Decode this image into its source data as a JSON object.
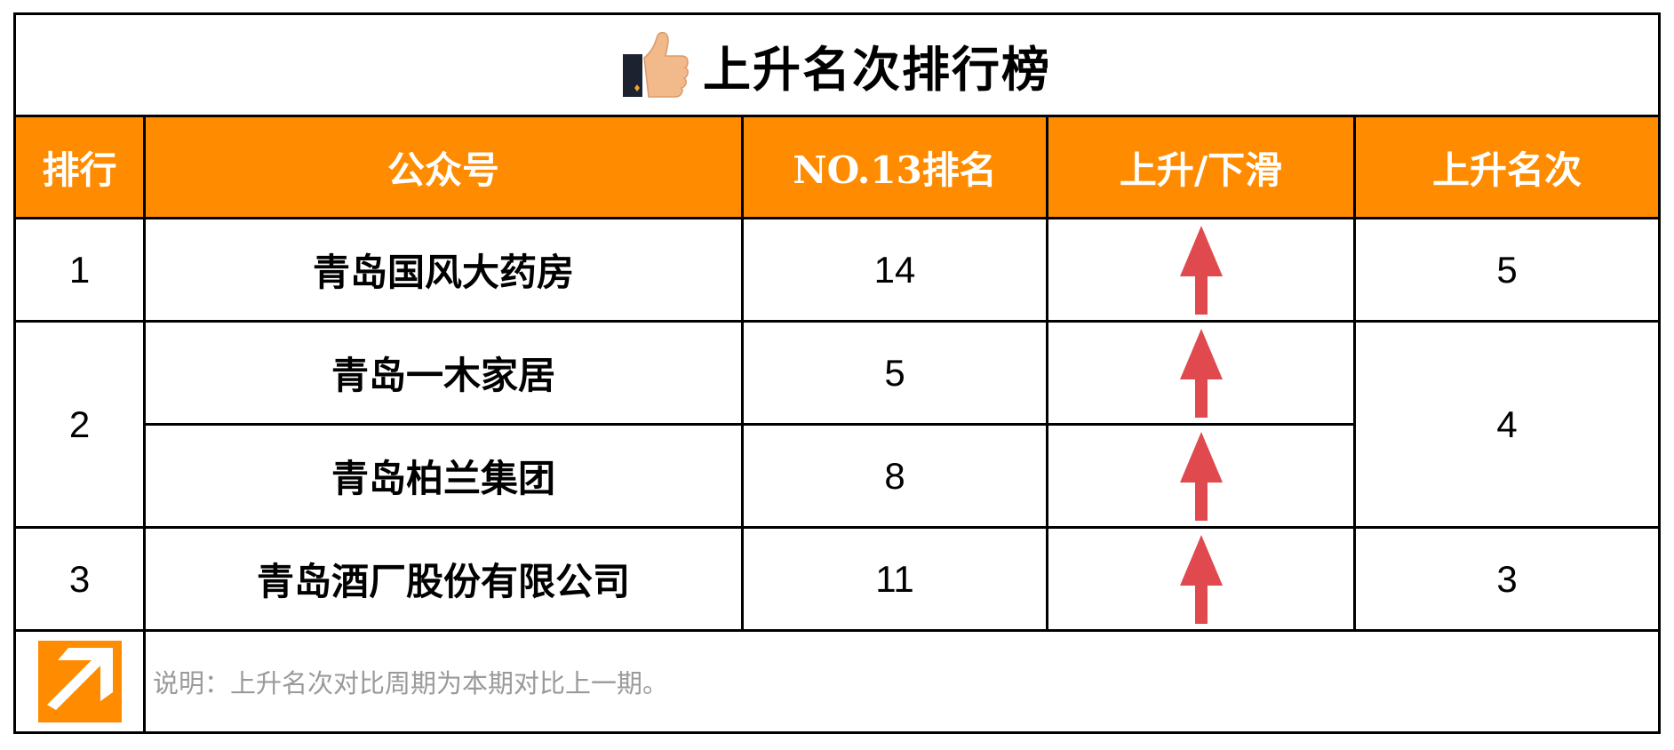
{
  "title": "上升名次排行榜",
  "title_icon": "thumbs-up-icon",
  "columns": [
    "排行",
    "公众号",
    "NO.13排名",
    "上升/下滑",
    "上升名次"
  ],
  "groups": [
    {
      "rank": "1",
      "rise": "5",
      "items": [
        {
          "name": "青岛国风大药房",
          "no13_rank": "14",
          "trend": "up"
        }
      ]
    },
    {
      "rank": "2",
      "rise": "4",
      "items": [
        {
          "name": "青岛一木家居",
          "no13_rank": "5",
          "trend": "up"
        },
        {
          "name": "青岛柏兰集团",
          "no13_rank": "8",
          "trend": "up"
        }
      ]
    },
    {
      "rank": "3",
      "rise": "3",
      "items": [
        {
          "name": "青岛酒厂股份有限公司",
          "no13_rank": "11",
          "trend": "up"
        }
      ]
    }
  ],
  "footer": {
    "icon": "arrow-up-right-icon",
    "note": "说明：上升名次对比周期为本期对比上一期。"
  },
  "colors": {
    "header_bg": "#FF8C00",
    "arrow": "#E04A4F",
    "rise_text": "#E00000",
    "note_text": "#9A9A9A"
  }
}
